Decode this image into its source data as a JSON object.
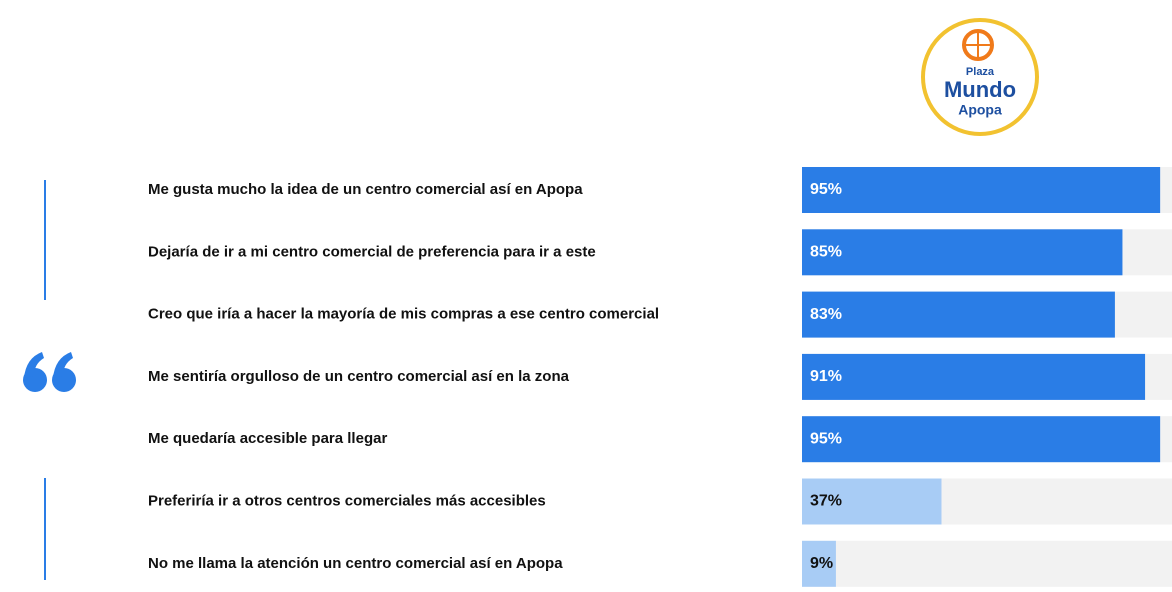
{
  "logo": {
    "top": "Plaza",
    "middle": "Mundo",
    "bottom": "Apopa"
  },
  "chart_data": {
    "type": "bar",
    "orientation": "horizontal",
    "categories": [
      "Me gusta mucho la idea de un centro comercial así en Apopa",
      "Dejaría de ir a mi centro comercial de preferencia para ir a este",
      "Creo que iría a hacer la mayoría de mis compras a ese centro comercial",
      "Me sentiría orgulloso de un centro comercial así en la zona",
      "Me quedaría accesible para llegar",
      "Preferiría ir a otros centros comerciales más accesibles",
      "No me llama la atención un centro comercial así en Apopa"
    ],
    "values": [
      95,
      85,
      83,
      91,
      95,
      37,
      9
    ],
    "value_labels": [
      "95%",
      "85%",
      "83%",
      "91%",
      "95%",
      "37%",
      "9%"
    ],
    "colors": [
      "#2a7de6",
      "#2a7de6",
      "#2a7de6",
      "#2a7de6",
      "#2a7de6",
      "#a8ccf5",
      "#a8ccf5"
    ],
    "xlim": [
      0,
      100
    ]
  }
}
